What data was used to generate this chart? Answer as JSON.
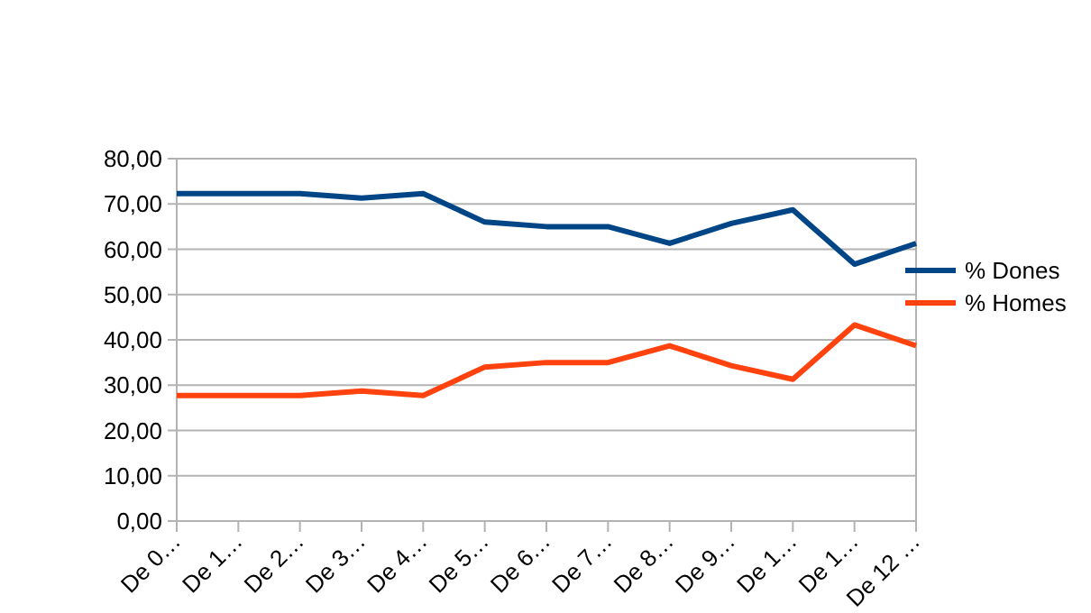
{
  "chart_data": {
    "type": "line",
    "categories": [
      "De 0…",
      "De 1…",
      "De 2…",
      "De 3…",
      "De 4…",
      "De 5…",
      "De 6…",
      "De 7…",
      "De 8…",
      "De 9…",
      "De 1…",
      "De 1…",
      "De 12 …"
    ],
    "series": [
      {
        "name": "% Dones",
        "color": "#004586",
        "values": [
          72.3,
          72.3,
          72.3,
          71.3,
          72.3,
          66,
          65,
          65,
          61.3,
          65.7,
          68.7,
          56.7,
          61.3
        ]
      },
      {
        "name": "% Homes",
        "color": "#ff420e",
        "values": [
          27.7,
          27.7,
          27.7,
          28.7,
          27.7,
          34,
          35,
          35,
          38.7,
          34.3,
          31.3,
          43.3,
          38.7
        ]
      }
    ],
    "ylim": [
      0,
      80
    ],
    "yticks": [
      {
        "value": 0,
        "label": "0,00"
      },
      {
        "value": 10,
        "label": "10,00"
      },
      {
        "value": 20,
        "label": "20,00"
      },
      {
        "value": 30,
        "label": "30,00"
      },
      {
        "value": 40,
        "label": "40,00"
      },
      {
        "value": 50,
        "label": "50,00"
      },
      {
        "value": 60,
        "label": "60,00"
      },
      {
        "value": 70,
        "label": "70,00"
      },
      {
        "value": 80,
        "label": "80,00"
      }
    ],
    "grid": "y",
    "legend": "right",
    "marker": "none",
    "line_style": "solid"
  }
}
